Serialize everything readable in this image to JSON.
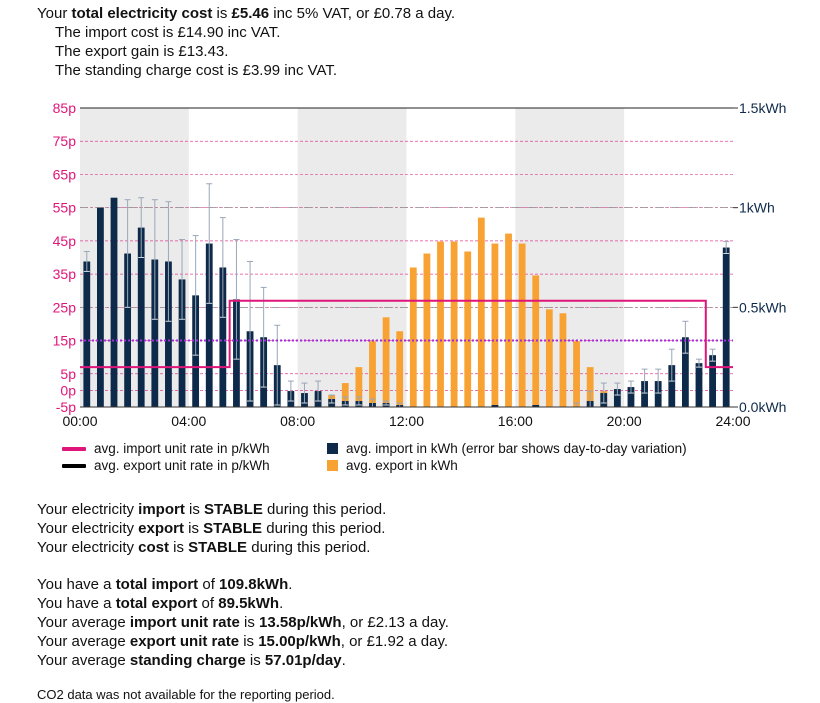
{
  "summary": {
    "cost_prefix": "Your ",
    "cost_label": "total electricity cost",
    "cost_mid": " is ",
    "cost_value": "£5.46",
    "cost_suffix": " inc 5% VAT, or £0.78 a day.",
    "import_line": "The import cost is £14.90 inc VAT.",
    "export_line": "The export gain is £13.43.",
    "standing_line": "The standing charge cost is £3.99 inc VAT."
  },
  "legend": {
    "import_rate": "avg. import unit rate in p/kWh",
    "export_rate": "avg. export unit rate in p/kWh",
    "import_kwh": "avg. import in kWh (error bar shows day-to-day variation)",
    "export_kwh": "avg. export in kWh"
  },
  "status": {
    "import_prefix": "Your electricity ",
    "import_word": "import",
    "import_mid": " is ",
    "import_value": "STABLE",
    "import_suffix": " during this period.",
    "export_prefix": "Your electricity ",
    "export_word": "export",
    "export_mid": " is ",
    "export_value": "STABLE",
    "export_suffix": " during this period.",
    "cost_prefix": "Your electricity ",
    "cost_word": "cost",
    "cost_mid": " is ",
    "cost_value": "STABLE",
    "cost_suffix": " during this period."
  },
  "totals": {
    "import_prefix": "You have a ",
    "import_label": "total import",
    "import_mid": " of ",
    "import_value": "109.8kWh",
    "import_suffix": ".",
    "export_prefix": "You have a ",
    "export_label": "total export",
    "export_mid": " of ",
    "export_value": "89.5kWh",
    "export_suffix": ".",
    "imp_rate_prefix": "Your average ",
    "imp_rate_label": "import unit rate",
    "imp_rate_mid": " is ",
    "imp_rate_value": "13.58p/kWh",
    "imp_rate_suffix": ", or £2.13 a day.",
    "exp_rate_prefix": "Your average ",
    "exp_rate_label": "export unit rate",
    "exp_rate_mid": " is ",
    "exp_rate_value": "15.00p/kWh",
    "exp_rate_suffix": ", or £1.92 a day.",
    "standing_prefix": "Your average ",
    "standing_label": "standing charge",
    "standing_mid": " is ",
    "standing_value": "57.01p/day",
    "standing_suffix": "."
  },
  "co2_note": "CO2 data was not available for the reporting period.",
  "chart_data": {
    "type": "bar",
    "colors": {
      "import": "#0e2a4a",
      "export": "#f7a232",
      "import_rate": "#e0157a",
      "export_rate": "#000000",
      "band": "#ebebeb",
      "grid": "#e0157a",
      "sep": "#777777"
    },
    "x": [
      0,
      0.5,
      1,
      1.5,
      2,
      2.5,
      3,
      3.5,
      4,
      4.5,
      5,
      5.5,
      6,
      6.5,
      7,
      7.5,
      8,
      8.5,
      9,
      9.5,
      10,
      10.5,
      11,
      11.5,
      12,
      12.5,
      13,
      13.5,
      14,
      14.5,
      15,
      15.5,
      16,
      16.5,
      17,
      17.5,
      18,
      18.5,
      19,
      19.5,
      20,
      20.5,
      21,
      21.5,
      22,
      22.5,
      23,
      23.5
    ],
    "xlim": [
      0,
      24
    ],
    "x_ticks": [
      0,
      4,
      8,
      12,
      16,
      20,
      24
    ],
    "x_tick_labels": [
      "00:00",
      "04:00",
      "08:00",
      "12:00",
      "16:00",
      "20:00",
      "24:00"
    ],
    "shaded_bands": [
      [
        0,
        4
      ],
      [
        8,
        12
      ],
      [
        16,
        20
      ]
    ],
    "y_left": {
      "label": "p/kWh",
      "lim": [
        -5,
        85
      ],
      "ticks": [
        85,
        75,
        65,
        55,
        45,
        35,
        25,
        15,
        5,
        0,
        -5
      ],
      "tick_labels": [
        "85p",
        "75p",
        "65p",
        "55p",
        "45p",
        "35p",
        "25p",
        "15p",
        "5p",
        "0p",
        "-5p"
      ]
    },
    "y_right": {
      "label": "kWh",
      "lim": [
        0,
        1.5
      ],
      "ticks": [
        1.5,
        1.0,
        0.5,
        0.0
      ],
      "tick_labels": [
        "1.5kWh",
        "1kWh",
        "0.5kWh",
        "0.0kWh"
      ]
    },
    "series": [
      {
        "name": "avg. import in kWh",
        "axis": "right",
        "values": [
          0.73,
          1.0,
          1.05,
          0.77,
          0.9,
          0.74,
          0.73,
          0.64,
          0.56,
          0.82,
          0.7,
          0.54,
          0.38,
          0.35,
          0.21,
          0.08,
          0.07,
          0.08,
          0.04,
          0.03,
          0.03,
          0.02,
          0.02,
          0.01,
          0.0,
          0.0,
          0.0,
          0.0,
          0.0,
          0.0,
          0.01,
          0.0,
          0.0,
          0.01,
          0.0,
          0.0,
          0.0,
          0.03,
          0.07,
          0.09,
          0.1,
          0.13,
          0.13,
          0.21,
          0.35,
          0.22,
          0.26,
          0.8
        ],
        "error": [
          0.05,
          0.0,
          0.0,
          0.27,
          0.15,
          0.3,
          0.3,
          0.2,
          0.3,
          0.3,
          0.25,
          0.3,
          0.35,
          0.25,
          0.2,
          0.05,
          0.05,
          0.05,
          0.02,
          0.02,
          0.02,
          0.02,
          0.01,
          0.01,
          0,
          0,
          0,
          0,
          0,
          0,
          0,
          0,
          0,
          0,
          0,
          0,
          0.02,
          0.05,
          0.05,
          0.03,
          0.03,
          0.06,
          0.06,
          0.08,
          0.08,
          0.02,
          0.03,
          0.03
        ]
      },
      {
        "name": "avg. export in kWh",
        "axis": "right",
        "values": [
          0,
          0,
          0,
          0,
          0,
          0,
          0,
          0,
          0,
          0,
          0,
          0,
          0,
          0,
          0,
          0,
          0.02,
          0.05,
          0.06,
          0.12,
          0.2,
          0.33,
          0.45,
          0.38,
          0.7,
          0.77,
          0.83,
          0.83,
          0.78,
          0.95,
          0.82,
          0.87,
          0.82,
          0.66,
          0.49,
          0.47,
          0.33,
          0.2,
          0.08,
          0,
          0,
          0,
          0,
          0,
          0,
          0,
          0,
          0
        ]
      },
      {
        "name": "avg. import unit rate in p/kWh",
        "axis": "left",
        "values": [
          7,
          7,
          7,
          7,
          7,
          7,
          7,
          7,
          7,
          7,
          7,
          27,
          27,
          27,
          27,
          27,
          27,
          27,
          27,
          27,
          27,
          27,
          27,
          27,
          27,
          27,
          27,
          27,
          27,
          27,
          27,
          27,
          27,
          27,
          27,
          27,
          27,
          27,
          27,
          27,
          27,
          27,
          27,
          27,
          27,
          27,
          7,
          7
        ]
      },
      {
        "name": "avg. export unit rate in p/kWh",
        "axis": "left",
        "values": [
          15,
          15,
          15,
          15,
          15,
          15,
          15,
          15,
          15,
          15,
          15,
          15,
          15,
          15,
          15,
          15,
          15,
          15,
          15,
          15,
          15,
          15,
          15,
          15,
          15,
          15,
          15,
          15,
          15,
          15,
          15,
          15,
          15,
          15,
          15,
          15,
          15,
          15,
          15,
          15,
          15,
          15,
          15,
          15,
          15,
          15,
          15,
          15
        ]
      }
    ]
  }
}
